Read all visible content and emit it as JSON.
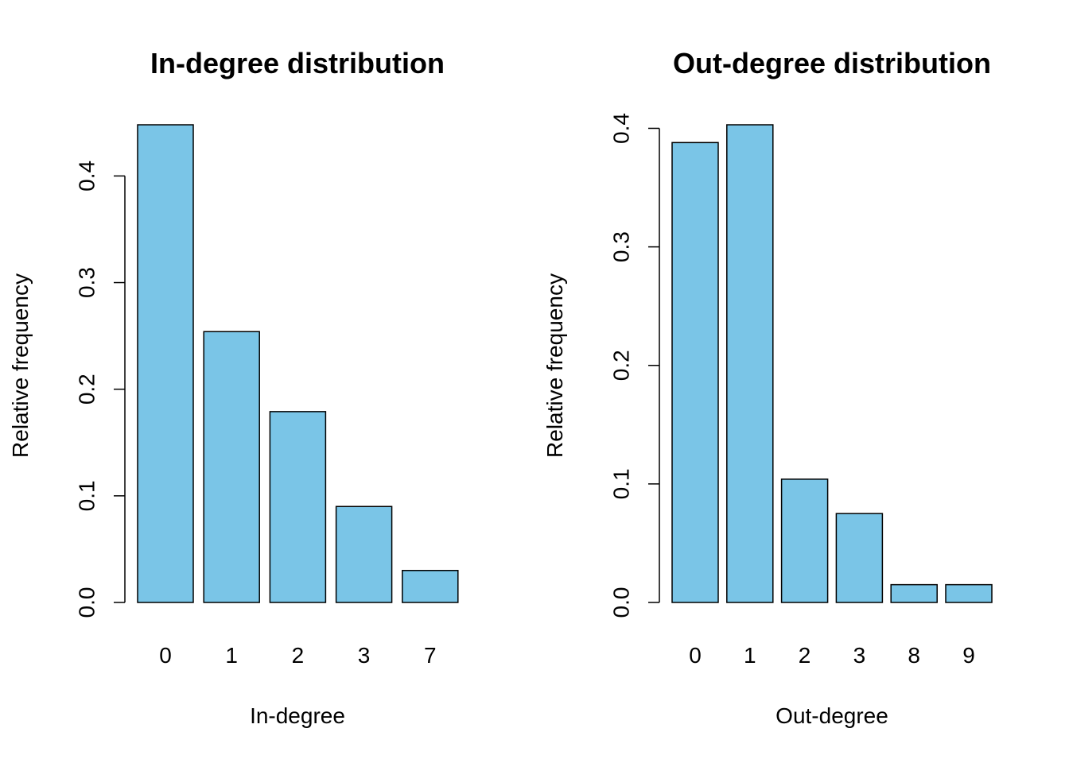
{
  "chart_data": [
    {
      "type": "bar",
      "title": "In-degree distribution",
      "xlabel": "In-degree",
      "ylabel": "Relative frequency",
      "categories": [
        "0",
        "1",
        "2",
        "3",
        "7"
      ],
      "values": [
        0.448,
        0.254,
        0.179,
        0.09,
        0.03
      ],
      "ylim": [
        0,
        0.448
      ],
      "yticks": [
        "0.0",
        "0.1",
        "0.2",
        "0.3",
        "0.4"
      ],
      "grid": false,
      "bar_color": "#7AC5E7"
    },
    {
      "type": "bar",
      "title": "Out-degree distribution",
      "xlabel": "Out-degree",
      "ylabel": "Relative frequency",
      "categories": [
        "0",
        "1",
        "2",
        "3",
        "8",
        "9"
      ],
      "values": [
        0.388,
        0.403,
        0.104,
        0.075,
        0.015,
        0.015
      ],
      "ylim": [
        0,
        0.403
      ],
      "yticks": [
        "0.0",
        "0.1",
        "0.2",
        "0.3",
        "0.4"
      ],
      "grid": false,
      "bar_color": "#7AC5E7"
    }
  ]
}
